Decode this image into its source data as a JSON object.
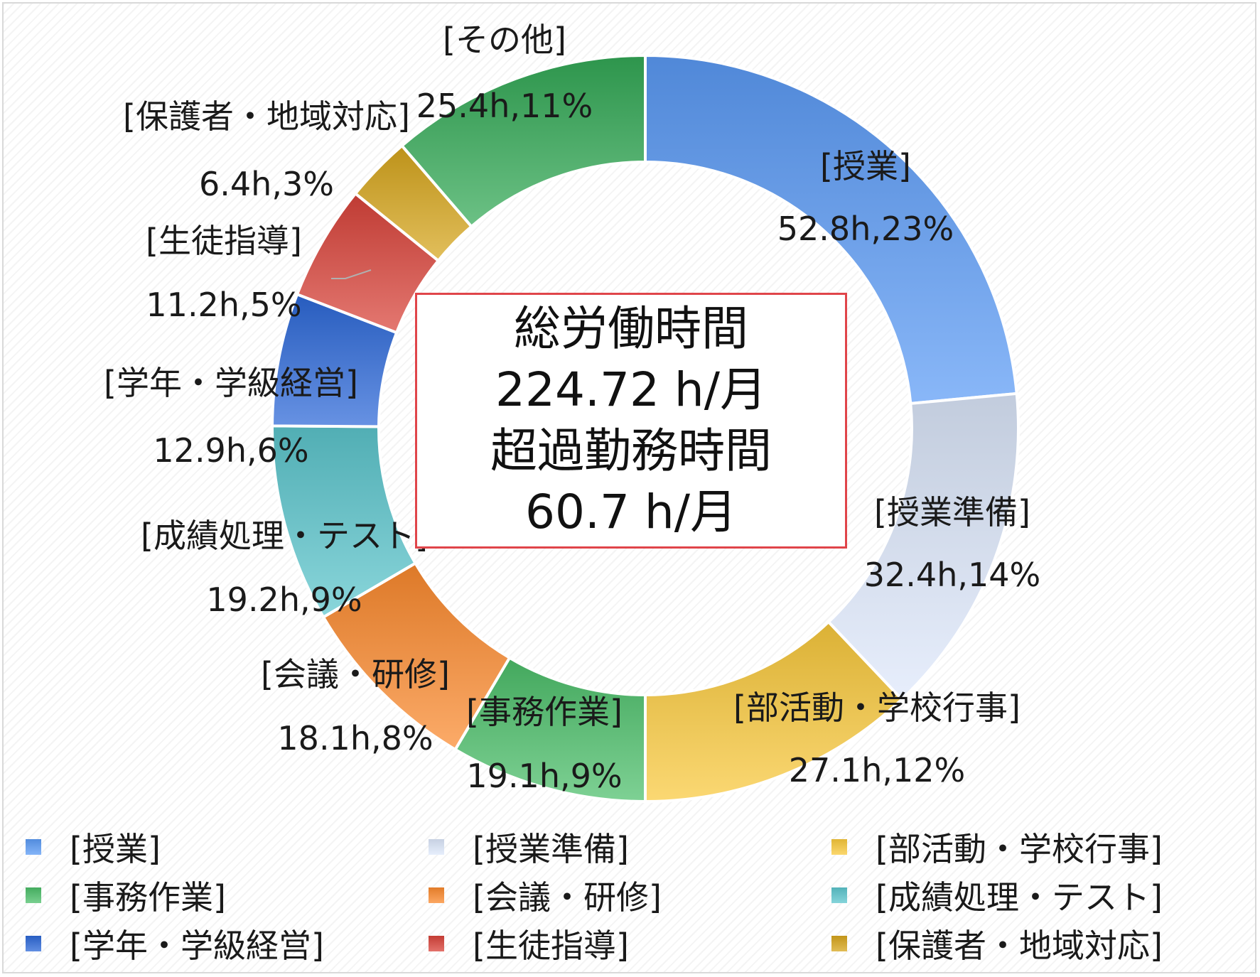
{
  "chart_data": {
    "type": "pie",
    "style": "donut",
    "categories": [
      "[授業]",
      "[授業準備]",
      "[部活動・学校行事]",
      "[事務作業]",
      "[会議・研修]",
      "[成績処理・テスト]",
      "[学年・学級経営]",
      "[生徒指導]",
      "[保護者・地域対応]",
      "[その他]"
    ],
    "values": [
      52.8,
      32.4,
      27.1,
      19.1,
      18.1,
      19.2,
      12.9,
      11.2,
      6.4,
      25.4
    ],
    "percent_labels": [
      "52.8h,23%",
      "32.4h,14%",
      "27.1h,12%",
      "19.1h,9%",
      "18.1h,8%",
      "19.2h,9%",
      "12.9h,6%",
      "11.2h,5%",
      "6.4h,3%",
      "25.4h,11%"
    ],
    "colors": [
      "#5b9bf5",
      "#dde8fb",
      "#f9c93c",
      "#4cbf6a",
      "#fb8a2e",
      "#5cc6cd",
      "#2c68d8",
      "#d9433a",
      "#d7a61c",
      "#33a956"
    ],
    "legend_position": "bottom"
  },
  "center": {
    "line1": "総労働時間",
    "line2": "224.72 h/月",
    "line3": "超過勤務時間",
    "line4": "60.7 h/月"
  }
}
